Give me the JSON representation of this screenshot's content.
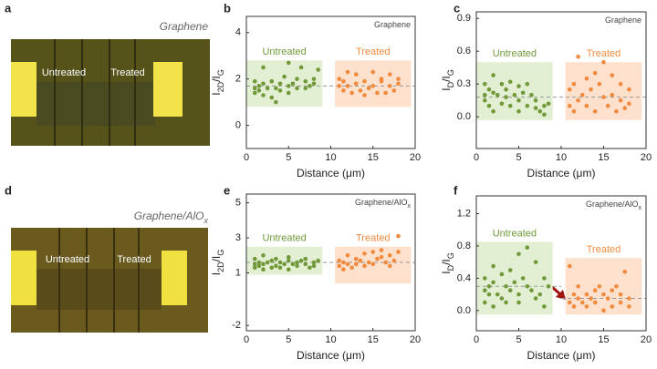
{
  "images": [
    {
      "panel": "a",
      "caption_parts": [
        "Graphene"
      ],
      "labels": [
        "Untreated",
        "Treated"
      ]
    },
    {
      "panel": "d",
      "caption_parts": [
        "Graphene/AlO",
        "x"
      ],
      "labels": [
        "Untreated",
        "Treated"
      ]
    }
  ],
  "chart_data": [
    {
      "type": "scatter",
      "panel": "b",
      "title_parts": [
        "Graphene"
      ],
      "xlabel": "Distance (μm)",
      "ylabel_parts": [
        "I",
        "2D",
        "/I",
        "G"
      ],
      "xlim": [
        0,
        20
      ],
      "xticks": [
        0,
        5,
        10,
        15,
        20
      ],
      "ylim": [
        -1,
        4.7
      ],
      "yticks": [
        0,
        2,
        4
      ],
      "regions": [
        {
          "name": "Untreated",
          "color": "#e2efd2",
          "xlim": [
            0,
            9
          ],
          "ylim": [
            0.8,
            2.8
          ]
        },
        {
          "name": "Treated",
          "color": "#fde1cd",
          "xlim": [
            10.5,
            19.5
          ],
          "ylim": [
            0.8,
            2.8
          ]
        }
      ],
      "mean_lines": [
        {
          "xlim": [
            0,
            20
          ],
          "value": 1.7
        }
      ],
      "series": [
        {
          "name": "Untreated",
          "color": "#71993a",
          "x": [
            1,
            1,
            1,
            1.5,
            1.5,
            2,
            2,
            2,
            2.5,
            3,
            3,
            3.5,
            3.5,
            4,
            4,
            4.5,
            5,
            5,
            5,
            5.5,
            6,
            6,
            6.5,
            7,
            7,
            7.5,
            8,
            8,
            8.5
          ],
          "values": [
            1.6,
            1.9,
            1.4,
            1.7,
            1.5,
            2.5,
            1.8,
            1.3,
            1.6,
            1.9,
            1.2,
            1.0,
            1.6,
            1.8,
            1.5,
            2.1,
            1.7,
            1.4,
            2.7,
            1.8,
            1.6,
            2.0,
            2.5,
            1.6,
            1.9,
            1.7,
            1.8,
            2.0,
            2.4
          ]
        },
        {
          "name": "Treated",
          "color": "#f08a3e",
          "x": [
            11,
            11,
            11.5,
            11.5,
            12,
            12,
            12.5,
            13,
            13,
            13.5,
            14,
            14,
            14.5,
            15,
            15,
            15.5,
            16,
            16,
            16.5,
            17,
            17,
            17.5,
            18,
            18
          ],
          "values": [
            2.0,
            1.7,
            1.9,
            1.5,
            1.7,
            2.3,
            1.4,
            1.8,
            2.2,
            1.5,
            1.9,
            1.3,
            1.6,
            2.3,
            1.7,
            1.4,
            1.9,
            2.0,
            1.4,
            1.7,
            2.2,
            1.5,
            1.8,
            2.0
          ]
        }
      ]
    },
    {
      "type": "scatter",
      "panel": "c",
      "title_parts": [
        "Graphene"
      ],
      "xlabel": "Distance (μm)",
      "ylabel_parts": [
        "I",
        "D",
        "/I",
        "G"
      ],
      "xlim": [
        0,
        20
      ],
      "xticks": [
        0,
        5,
        10,
        15,
        20
      ],
      "ylim": [
        -0.29,
        0.96
      ],
      "yticks": [
        {
          "value": 0,
          "label": "0.0"
        },
        0.3,
        0.6,
        0.9
      ],
      "regions": [
        {
          "name": "Untreated",
          "color": "#e2efd2",
          "xlim": [
            0,
            9
          ],
          "ylim": [
            -0.03,
            0.5
          ]
        },
        {
          "name": "Treated",
          "color": "#fde1cd",
          "xlim": [
            10.5,
            19.5
          ],
          "ylim": [
            -0.03,
            0.5
          ]
        }
      ],
      "mean_lines": [
        {
          "xlim": [
            0,
            20
          ],
          "value": 0.18
        }
      ],
      "series": [
        {
          "name": "Untreated",
          "color": "#71993a",
          "x": [
            1,
            1,
            1,
            1.5,
            1.5,
            2,
            2,
            2,
            2.5,
            3,
            3,
            3.5,
            3.5,
            4,
            4,
            4.5,
            5,
            5,
            5,
            5.5,
            6,
            6,
            6.5,
            7,
            7,
            7.5,
            8,
            8,
            8.5
          ],
          "values": [
            0.2,
            0.3,
            0.15,
            0.25,
            0.1,
            0.38,
            0.22,
            0.05,
            0.2,
            0.3,
            0.12,
            0.18,
            0.25,
            0.32,
            0.1,
            0.2,
            0.28,
            0.05,
            0.15,
            0.22,
            0.1,
            0.3,
            0.2,
            0.08,
            0.15,
            0.05,
            0.1,
            0.02,
            0.12
          ]
        },
        {
          "name": "Treated",
          "color": "#f08a3e",
          "x": [
            11,
            11,
            11.5,
            11.5,
            12,
            12,
            12.5,
            13,
            13,
            13.5,
            14,
            14,
            14.5,
            15,
            15,
            15.5,
            16,
            16,
            16.5,
            17,
            17,
            17.5,
            18,
            18
          ],
          "values": [
            0.1,
            0.25,
            0.05,
            0.3,
            0.15,
            0.55,
            0.2,
            0.35,
            0.1,
            0.25,
            0.4,
            0.05,
            0.3,
            0.5,
            0.18,
            0.1,
            0.38,
            0.2,
            0.05,
            0.3,
            0.15,
            0.08,
            0.25,
            0.12
          ]
        }
      ]
    },
    {
      "type": "scatter",
      "panel": "e",
      "title_parts": [
        "Graphene/AlO",
        "x"
      ],
      "xlabel": "Distance (μm)",
      "ylabel_parts": [
        "I",
        "2D",
        "/I",
        "G"
      ],
      "xlim": [
        0,
        20
      ],
      "xticks": [
        0,
        5,
        10,
        15,
        20
      ],
      "ylim": [
        -2.3,
        5.5
      ],
      "yticks": [
        -2,
        1,
        3,
        5
      ],
      "regions": [
        {
          "name": "Untreated",
          "color": "#e2efd2",
          "xlim": [
            0,
            9
          ],
          "ylim": [
            0.9,
            2.5
          ]
        },
        {
          "name": "Treated",
          "color": "#fde1cd",
          "xlim": [
            10.5,
            19.5
          ],
          "ylim": [
            0.4,
            2.5
          ]
        }
      ],
      "mean_lines": [
        {
          "xlim": [
            0,
            20
          ],
          "value": 1.6
        }
      ],
      "series": [
        {
          "name": "Untreated",
          "color": "#71993a",
          "x": [
            1,
            1,
            1,
            1.5,
            1.5,
            2,
            2,
            2,
            2.5,
            3,
            3,
            3.5,
            3.5,
            4,
            4,
            4.5,
            5,
            5,
            5,
            5.5,
            6,
            6,
            6.5,
            7,
            7,
            7.5,
            8,
            8,
            8.5
          ],
          "values": [
            1.5,
            1.8,
            1.3,
            1.6,
            1.4,
            2.0,
            1.5,
            1.2,
            1.6,
            1.7,
            1.3,
            1.4,
            1.8,
            1.6,
            1.3,
            1.5,
            1.7,
            1.2,
            1.9,
            1.5,
            1.6,
            1.4,
            1.7,
            1.5,
            1.8,
            1.3,
            1.6,
            1.4,
            1.7
          ]
        },
        {
          "name": "Treated",
          "color": "#f08a3e",
          "x": [
            11,
            11,
            11.5,
            11.5,
            12,
            12,
            12.5,
            13,
            13,
            13.5,
            14,
            14,
            14.5,
            15,
            15,
            15.5,
            16,
            16,
            16.5,
            17,
            17,
            17.5,
            18,
            18
          ],
          "values": [
            1.4,
            1.7,
            1.2,
            1.6,
            1.5,
            2.0,
            1.3,
            1.8,
            1.5,
            1.7,
            2.1,
            1.4,
            1.6,
            2.2,
            1.5,
            1.8,
            1.9,
            2.3,
            1.6,
            1.4,
            2.0,
            1.7,
            3.1,
            2.2
          ]
        }
      ]
    },
    {
      "type": "scatter",
      "panel": "f",
      "title_parts": [
        "Graphene/AlO",
        "x"
      ],
      "xlabel": "Distance (μm)",
      "ylabel_parts": [
        "I",
        "D",
        "/I",
        "G"
      ],
      "xlim": [
        0,
        20
      ],
      "xticks": [
        0,
        5,
        10,
        15,
        20
      ],
      "ylim": [
        -0.25,
        1.42
      ],
      "yticks": [
        {
          "value": 0,
          "label": "0.0"
        },
        0.4,
        0.8,
        1.2
      ],
      "regions": [
        {
          "name": "Untreated",
          "color": "#e2efd2",
          "xlim": [
            0,
            9
          ],
          "ylim": [
            -0.05,
            0.85
          ]
        },
        {
          "name": "Treated",
          "color": "#fde1cd",
          "xlim": [
            10.5,
            19.5
          ],
          "ylim": [
            -0.05,
            0.65
          ]
        }
      ],
      "mean_lines": [
        {
          "xlim": [
            0,
            10
          ],
          "value": 0.3
        },
        {
          "xlim": [
            10,
            20
          ],
          "value": 0.15
        }
      ],
      "series": [
        {
          "name": "Untreated",
          "color": "#71993a",
          "x": [
            1,
            1,
            1,
            1.5,
            1.5,
            2,
            2,
            2,
            2.5,
            3,
            3,
            3.5,
            3.5,
            4,
            4,
            4.5,
            5,
            5,
            5,
            5.5,
            6,
            6,
            6.5,
            7,
            7,
            7.5,
            8,
            8,
            8.5
          ],
          "values": [
            0.25,
            0.4,
            0.1,
            0.3,
            0.2,
            0.55,
            0.35,
            0.05,
            0.2,
            0.45,
            0.15,
            0.3,
            0.1,
            0.5,
            0.25,
            0.35,
            0.7,
            0.2,
            0.1,
            0.4,
            0.3,
            0.78,
            0.25,
            0.15,
            0.6,
            0.2,
            0.05,
            0.4,
            0.3
          ]
        },
        {
          "name": "Treated",
          "color": "#f08a3e",
          "x": [
            11,
            11,
            11.5,
            11.5,
            12,
            12,
            12.5,
            13,
            13,
            13.5,
            14,
            14,
            14.5,
            15,
            15,
            15.5,
            16,
            16,
            16.5,
            17,
            17,
            17.5,
            18,
            18
          ],
          "values": [
            0.1,
            0.55,
            0.2,
            0.05,
            0.15,
            0.3,
            0.1,
            0.2,
            0.05,
            0.15,
            0.25,
            0.1,
            0.3,
            0.0,
            0.2,
            0.15,
            0.05,
            0.25,
            0.3,
            0.1,
            0.2,
            0.48,
            0.15,
            0.05
          ]
        }
      ]
    }
  ]
}
